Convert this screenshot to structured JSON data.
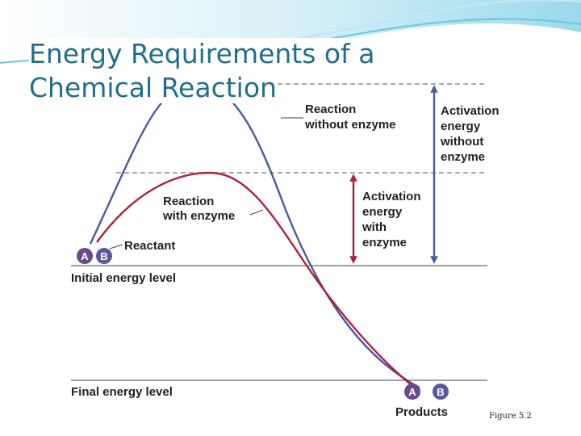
{
  "slide": {
    "title_line1": "Energy Requirements of a",
    "title_line2": "Chemical Reaction",
    "figure_caption": "Figure 5.2"
  },
  "diagram": {
    "curve_without_enzyme_label_1": "Reaction",
    "curve_without_enzyme_label_2": "without enzyme",
    "curve_with_enzyme_label_1": "Reaction",
    "curve_with_enzyme_label_2": "with enzyme",
    "activation_without_1": "Activation",
    "activation_without_2": "energy",
    "activation_without_3": "without",
    "activation_without_4": "enzyme",
    "activation_with_1": "Activation",
    "activation_with_2": "energy",
    "activation_with_3": "with",
    "activation_with_4": "enzyme",
    "reactant_label": "Reactant",
    "initial_level_label": "Initial energy level",
    "final_level_label": "Final energy level",
    "products_label": "Products",
    "molecule_a": "A",
    "molecule_b": "B"
  },
  "colors": {
    "title": "#1f6f8b",
    "curve_without_enzyme": "#4a5a9b",
    "curve_with_enzyme": "#b0203a",
    "molecule_a": "#6a4a8a",
    "molecule_b": "#5a5a9a",
    "wave_light": "#bfe8f4",
    "wave_dark": "#6cc6e0"
  }
}
